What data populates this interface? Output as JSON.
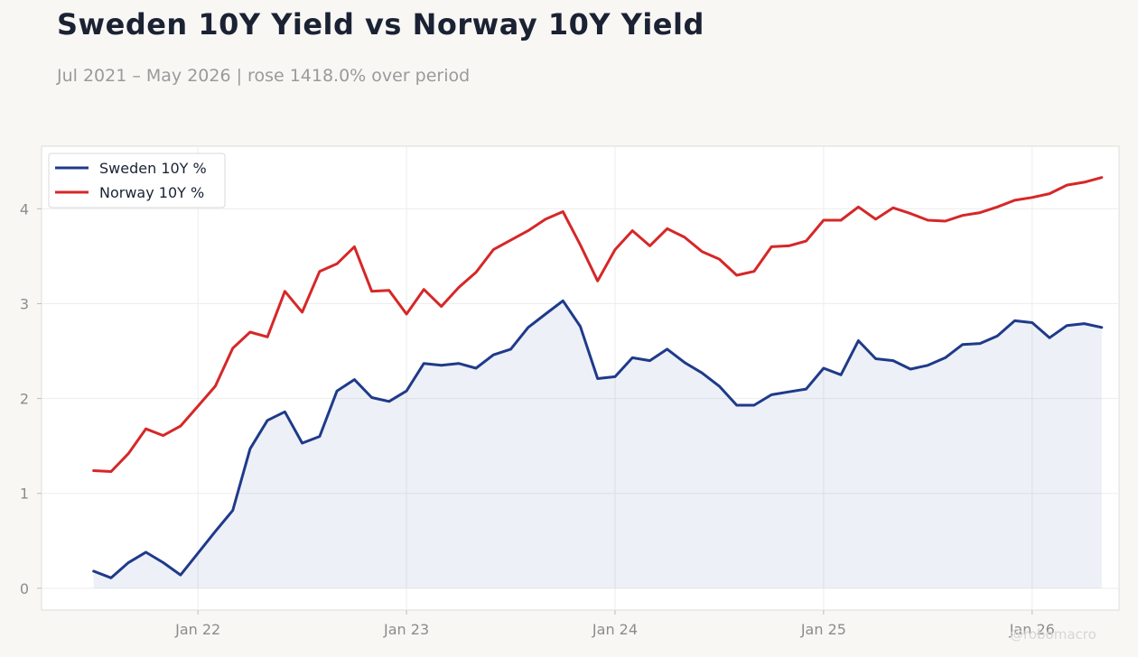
{
  "title": "Sweden 10Y Yield vs Norway 10Y Yield",
  "subtitle": "Jul 2021 – May 2026 | rose 1418.0% over period",
  "watermark": "@robomacro",
  "chart_data": {
    "type": "line",
    "title": "Sweden 10Y Yield vs Norway 10Y Yield",
    "subtitle": "Jul 2021 – May 2026 | rose 1418.0% over period",
    "xlabel": "",
    "ylabel": "",
    "x": [
      "2021-07",
      "2021-08",
      "2021-09",
      "2021-10",
      "2021-11",
      "2021-12",
      "2022-01",
      "2022-02",
      "2022-03",
      "2022-04",
      "2022-05",
      "2022-06",
      "2022-07",
      "2022-08",
      "2022-09",
      "2022-10",
      "2022-11",
      "2022-12",
      "2023-01",
      "2023-02",
      "2023-03",
      "2023-04",
      "2023-05",
      "2023-06",
      "2023-07",
      "2023-08",
      "2023-09",
      "2023-10",
      "2023-11",
      "2023-12",
      "2024-01",
      "2024-02",
      "2024-03",
      "2024-04",
      "2024-05",
      "2024-06",
      "2024-07",
      "2024-08",
      "2024-09",
      "2024-10",
      "2024-11",
      "2024-12",
      "2025-01",
      "2025-02",
      "2025-03",
      "2025-04",
      "2025-05",
      "2025-06",
      "2025-07",
      "2025-08",
      "2025-09",
      "2025-10",
      "2025-11",
      "2025-12",
      "2026-01",
      "2026-02",
      "2026-03",
      "2026-04",
      "2026-05"
    ],
    "series": [
      {
        "name": "Sweden 10Y %",
        "color": "#1f3a8a",
        "fill": true,
        "values": [
          0.18,
          0.11,
          0.27,
          0.38,
          0.27,
          0.14,
          0.37,
          0.6,
          0.82,
          1.47,
          1.77,
          1.86,
          1.53,
          1.6,
          2.08,
          2.2,
          2.01,
          1.97,
          2.08,
          2.37,
          2.35,
          2.37,
          2.32,
          2.46,
          2.52,
          2.75,
          2.89,
          3.03,
          2.76,
          2.21,
          2.23,
          2.43,
          2.4,
          2.52,
          2.38,
          2.27,
          2.13,
          1.93,
          1.93,
          2.04,
          2.07,
          2.1,
          2.32,
          2.25,
          2.61,
          2.42,
          2.4,
          2.31,
          2.35,
          2.43,
          2.57,
          2.58,
          2.66,
          2.82,
          2.8,
          2.64,
          2.77,
          2.79,
          2.75
        ]
      },
      {
        "name": "Norway 10Y %",
        "color": "#d62728",
        "fill": false,
        "values": [
          1.24,
          1.23,
          1.42,
          1.68,
          1.61,
          1.71,
          1.92,
          2.13,
          2.53,
          2.7,
          2.65,
          3.13,
          2.91,
          3.34,
          3.42,
          3.6,
          3.13,
          3.14,
          2.89,
          3.15,
          2.97,
          3.17,
          3.33,
          3.57,
          3.67,
          3.77,
          3.89,
          3.97,
          3.62,
          3.24,
          3.57,
          3.77,
          3.61,
          3.79,
          3.7,
          3.55,
          3.47,
          3.3,
          3.34,
          3.6,
          3.61,
          3.66,
          3.88,
          3.88,
          4.02,
          3.89,
          4.01,
          3.95,
          3.88,
          3.87,
          3.93,
          3.96,
          4.02,
          4.09,
          4.12,
          4.16,
          4.25,
          4.28,
          4.33
        ]
      }
    ],
    "xticks": [
      {
        "x": "2022-01",
        "label": "Jan 22"
      },
      {
        "x": "2023-01",
        "label": "Jan 23"
      },
      {
        "x": "2024-01",
        "label": "Jan 24"
      },
      {
        "x": "2025-01",
        "label": "Jan 25"
      },
      {
        "x": "2026-01",
        "label": "Jan 26"
      }
    ],
    "yticks": [
      0,
      1,
      2,
      3,
      4
    ],
    "ylim": [
      -0.23,
      4.66
    ],
    "xlim": [
      "2021-04",
      "2026-06"
    ],
    "grid": true,
    "legend": "top-left"
  }
}
